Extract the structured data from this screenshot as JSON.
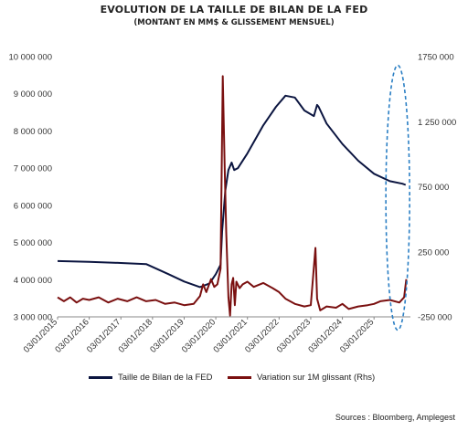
{
  "chart_data": {
    "type": "line",
    "title": "EVOLUTION DE LA TAILLE DE BILAN DE LA FED",
    "subtitle": "(MONTANT EN MM$ & GLISSEMENT MENSUEL)",
    "x_tick_labels": [
      "03/01/2015",
      "03/01/2016",
      "03/01/2017",
      "03/01/2018",
      "03/01/2019",
      "03/01/2020",
      "03/01/2021",
      "03/01/2022",
      "03/01/2023",
      "03/01/2024",
      "03/01/2025"
    ],
    "y_left_ticks": [
      "3 000 000",
      "4 000 000",
      "5 000 000",
      "6 000 000",
      "7 000 000",
      "8 000 000",
      "9 000 000",
      "10 000 000"
    ],
    "y_right_ticks": [
      "-250 000",
      "250 000",
      "750 000",
      "1 250 000",
      "1750 000"
    ],
    "ylim_left": [
      3000000,
      10000000
    ],
    "ylim_right": [
      -250000,
      1750000
    ],
    "series": [
      {
        "name": "Taille de Bilan de la FED",
        "axis": "left",
        "color": "#0b1540",
        "points": [
          [
            2015.0,
            4500000
          ],
          [
            2016.0,
            4480000
          ],
          [
            2017.0,
            4450000
          ],
          [
            2017.8,
            4420000
          ],
          [
            2018.5,
            4150000
          ],
          [
            2019.0,
            3950000
          ],
          [
            2019.5,
            3800000
          ],
          [
            2019.8,
            3900000
          ],
          [
            2020.0,
            4150000
          ],
          [
            2020.15,
            4400000
          ],
          [
            2020.2,
            5300000
          ],
          [
            2020.3,
            6400000
          ],
          [
            2020.4,
            6950000
          ],
          [
            2020.5,
            7150000
          ],
          [
            2020.58,
            6950000
          ],
          [
            2020.7,
            7000000
          ],
          [
            2021.0,
            7400000
          ],
          [
            2021.5,
            8150000
          ],
          [
            2021.9,
            8650000
          ],
          [
            2022.2,
            8950000
          ],
          [
            2022.5,
            8900000
          ],
          [
            2022.8,
            8550000
          ],
          [
            2023.1,
            8400000
          ],
          [
            2023.2,
            8700000
          ],
          [
            2023.25,
            8650000
          ],
          [
            2023.5,
            8200000
          ],
          [
            2024.0,
            7650000
          ],
          [
            2024.5,
            7200000
          ],
          [
            2025.0,
            6850000
          ],
          [
            2025.5,
            6650000
          ],
          [
            2025.9,
            6580000
          ],
          [
            2026.0,
            6550000
          ]
        ]
      },
      {
        "name": "Variation sur 1M glissant (Rhs)",
        "axis": "right",
        "color": "#7a1010",
        "points": [
          [
            2015.0,
            -100000
          ],
          [
            2015.2,
            -130000
          ],
          [
            2015.4,
            -100000
          ],
          [
            2015.6,
            -140000
          ],
          [
            2015.8,
            -110000
          ],
          [
            2016.0,
            -120000
          ],
          [
            2016.3,
            -100000
          ],
          [
            2016.6,
            -140000
          ],
          [
            2016.9,
            -110000
          ],
          [
            2017.2,
            -130000
          ],
          [
            2017.5,
            -100000
          ],
          [
            2017.8,
            -130000
          ],
          [
            2018.1,
            -120000
          ],
          [
            2018.4,
            -150000
          ],
          [
            2018.7,
            -140000
          ],
          [
            2019.0,
            -160000
          ],
          [
            2019.3,
            -150000
          ],
          [
            2019.5,
            -90000
          ],
          [
            2019.6,
            0
          ],
          [
            2019.7,
            -60000
          ],
          [
            2019.85,
            40000
          ],
          [
            2019.95,
            -20000
          ],
          [
            2020.05,
            0
          ],
          [
            2020.15,
            120000
          ],
          [
            2020.22,
            1600000
          ],
          [
            2020.28,
            900000
          ],
          [
            2020.33,
            400000
          ],
          [
            2020.4,
            -100000
          ],
          [
            2020.45,
            -240000
          ],
          [
            2020.5,
            0
          ],
          [
            2020.55,
            50000
          ],
          [
            2020.6,
            -160000
          ],
          [
            2020.65,
            20000
          ],
          [
            2020.75,
            -30000
          ],
          [
            2020.85,
            0
          ],
          [
            2021.0,
            20000
          ],
          [
            2021.2,
            -20000
          ],
          [
            2021.5,
            10000
          ],
          [
            2021.8,
            -30000
          ],
          [
            2022.0,
            -60000
          ],
          [
            2022.2,
            -110000
          ],
          [
            2022.5,
            -150000
          ],
          [
            2022.8,
            -170000
          ],
          [
            2023.0,
            -160000
          ],
          [
            2023.15,
            280000
          ],
          [
            2023.2,
            -110000
          ],
          [
            2023.3,
            -200000
          ],
          [
            2023.5,
            -170000
          ],
          [
            2023.8,
            -180000
          ],
          [
            2024.0,
            -150000
          ],
          [
            2024.2,
            -190000
          ],
          [
            2024.5,
            -170000
          ],
          [
            2024.8,
            -160000
          ],
          [
            2025.0,
            -150000
          ],
          [
            2025.2,
            -130000
          ],
          [
            2025.5,
            -120000
          ],
          [
            2025.8,
            -140000
          ],
          [
            2025.95,
            -100000
          ],
          [
            2026.02,
            40000
          ]
        ]
      }
    ],
    "xlim": [
      2015.0,
      2026.15
    ],
    "grid": false,
    "legend_position": "bottom",
    "highlight": {
      "shape": "dashed-ellipse",
      "color": "#2b7fc4",
      "x": 2025.75
    },
    "source": "Sources : Bloomberg, Amplegest"
  }
}
